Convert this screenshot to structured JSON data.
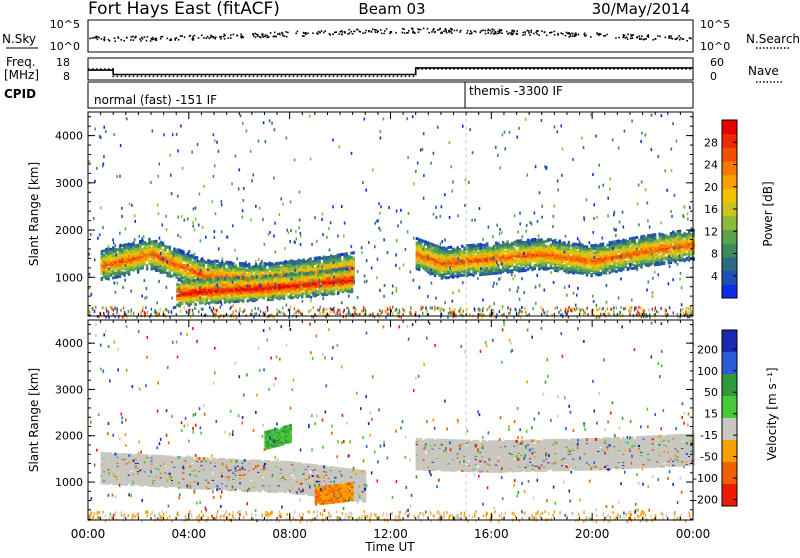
{
  "header": {
    "station": "Fort Hays East (fitACF)",
    "beam": "Beam 03",
    "date": "30/May/2014"
  },
  "labels": {
    "nsky": "N.Sky",
    "nsearch": "N.Search",
    "freq_top": "Freq.",
    "freq_unit": "[MHz]",
    "cpid": "CPID",
    "nave": "Nave",
    "cpid_mode_1": "normal (fast) -151 IF",
    "cpid_mode_2": "themis -3300 IF",
    "time_axis": "Time UT",
    "slant_range": "Slant Range [km]",
    "power_bar_title": "Power [dB]",
    "velocity_bar_title": "Velocity [m s⁻¹]"
  },
  "chart_data": [
    {
      "type": "line",
      "name": "noise-panel",
      "y_left_ticks": [
        "10^5",
        "10^0"
      ],
      "y_right_ticks": [
        "10^5",
        "10^0"
      ],
      "note_series": [
        "N.Sky",
        "N.Search"
      ]
    },
    {
      "type": "line",
      "name": "frequency-nave-panel",
      "y_left_ticks": [
        "18",
        "8"
      ],
      "y_right_ticks": [
        "60",
        "0"
      ],
      "series": [
        {
          "name": "Freq.",
          "x_hours": [
            0,
            1,
            1,
            13,
            13,
            24
          ],
          "values": [
            12.5,
            12.5,
            10.5,
            10.5,
            13.5,
            13.5
          ]
        },
        {
          "name": "Nave",
          "x_hours": [
            0,
            1,
            1,
            13,
            13,
            24
          ],
          "values": [
            30,
            30,
            10,
            10,
            30,
            30
          ]
        }
      ]
    },
    {
      "type": "heatmap",
      "name": "power",
      "x_ticks": [
        "00:00",
        "04:00",
        "08:00",
        "12:00",
        "16:00",
        "20:00",
        "00:00"
      ],
      "x_range_hours": [
        0,
        24
      ],
      "y_ticks": [
        1000,
        2000,
        3000,
        4000
      ],
      "y_range_km": [
        180,
        4500
      ],
      "colorbar_ticks": [
        "4",
        "8",
        "12",
        "16",
        "20",
        "24",
        "28"
      ],
      "colorbar_colors": [
        "#0a2ee6",
        "#1f4fb5",
        "#2e6a86",
        "#3d8a5d",
        "#59a34b",
        "#8cba3c",
        "#c8c423",
        "#f2c200",
        "#f7a200",
        "#f57a00",
        "#f25000",
        "#ee2a00",
        "#e80000"
      ],
      "features": [
        {
          "label": "echo band A",
          "x_hours": [
            0.5,
            2.5,
            4.5,
            6.5,
            8.5,
            10.5
          ],
          "y_km": [
            1250,
            1500,
            1050,
            950,
            1050,
            1200
          ],
          "level": "high"
        },
        {
          "label": "echo band B",
          "x_hours": [
            3.5,
            5,
            7,
            9,
            10.5
          ],
          "y_km": [
            650,
            720,
            780,
            870,
            960
          ],
          "level": "max"
        },
        {
          "label": "echo band C",
          "x_hours": [
            13,
            14,
            16,
            18,
            20,
            22,
            24
          ],
          "y_km": [
            1500,
            1300,
            1400,
            1500,
            1350,
            1550,
            1700
          ],
          "level": "high"
        }
      ]
    },
    {
      "type": "heatmap",
      "name": "velocity",
      "x_ticks": [
        "00:00",
        "04:00",
        "08:00",
        "12:00",
        "16:00",
        "20:00",
        "00:00"
      ],
      "x_range_hours": [
        0,
        24
      ],
      "y_ticks": [
        1000,
        2000,
        3000,
        4000
      ],
      "y_range_km": [
        180,
        4500
      ],
      "colorbar_ticks": [
        "200",
        "100",
        "50",
        "15",
        "-15",
        "-50",
        "-100",
        "-200"
      ],
      "colorbar_colors": [
        "#1a2ab0",
        "#2a5bd8",
        "#2f9a3c",
        "#49c83a",
        "#c8c8c0",
        "#f5a000",
        "#f06000",
        "#ee1a00"
      ],
      "features": [
        {
          "label": "ground scatter",
          "x_hours": [
            0.5,
            4,
            8,
            11
          ],
          "y_km": [
            1300,
            1200,
            1100,
            900
          ],
          "level": "grey"
        },
        {
          "label": "ground scatter",
          "x_hours": [
            13,
            16,
            20,
            24
          ],
          "y_km": [
            1600,
            1550,
            1600,
            1700
          ],
          "level": "grey"
        },
        {
          "label": "positive",
          "x_hours": [
            7,
            8
          ],
          "y_km": [
            1900,
            2050
          ],
          "level": "green"
        },
        {
          "label": "negative",
          "x_hours": [
            9,
            10.5
          ],
          "y_km": [
            700,
            800
          ],
          "level": "orange"
        }
      ]
    }
  ]
}
